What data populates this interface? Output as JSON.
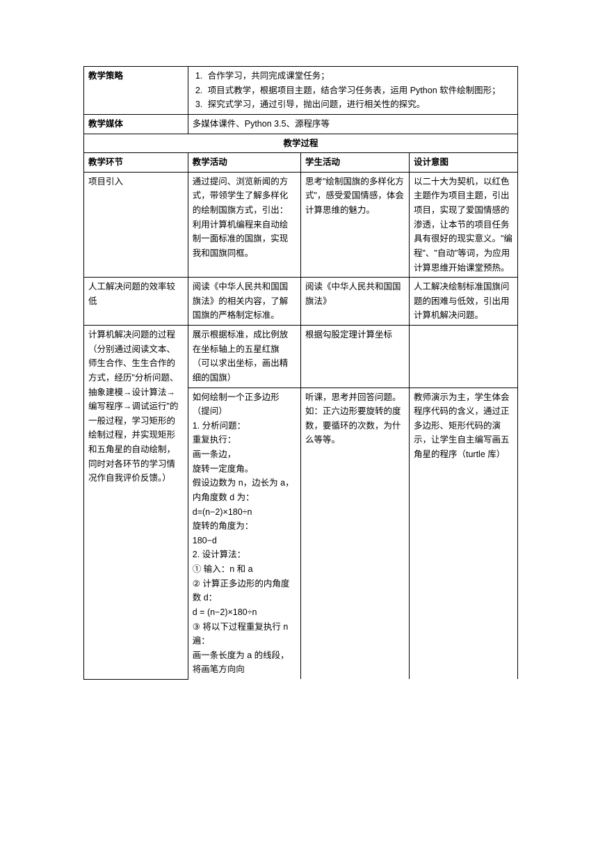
{
  "row1": {
    "label": "教学策略",
    "content": "<ol><li>合作学习，共同完成课堂任务；</li><li>项目式教学，根据项目主题，结合学习任务表，运用 Python 软件绘制图形；</li><li>探究式学习，通过引导，抛出问题，进行相关性的探究。</li></ol>"
  },
  "row2": {
    "label": "教学媒体",
    "content": "多媒体课件、Python 3.5、源程序等"
  },
  "section_header": "教学过程",
  "headers": {
    "col1": "教学环节",
    "col2": "教学活动",
    "col3": "学生活动",
    "col4": "设计意图"
  },
  "row_a": {
    "col1": "项目引入",
    "col2": "通过提问、浏览新闻的方式，带领学生了解多样化的绘制国旗方式，引出：利用计算机编程来自动绘制一面标准的国旗，实现我和国旗同框。",
    "col3": "思考\"绘制国旗的多样化方式\"，感受爱国情感，体会计算思维的魅力。",
    "col4": "以二十大为契机，以红色主题作为项目主题，引出项目，实现了爱国情感的渗透，让本节的项目任务具有很好的现实意义。\"编程\"、\"自动\"等词，为应用计算思维开始课堂预热。"
  },
  "row_b": {
    "col1": "人工解决问题的效率较低",
    "col2": "阅读《中华人民共和国国旗法》的相关内容，了解国旗的严格制定标准。",
    "col3": "阅读《中华人民共和国国旗法》",
    "col4": "人工解决绘制标准国旗问题的困难与低效，引出用计算机解决问题。"
  },
  "row_c": {
    "col1_merged": "计算机解决问题的过程（分别通过阅读文本、师生合作、生生合作的方式，经历\"分析问题、抽象建模→设计算法→编写程序→调试运行\"的一般过程，学习矩形的绘制过程，并实现矩形和五角星的自动绘制，同时对各环节的学习情况作自我评价反馈。）",
    "col2": "展示根据标准，成比例放在坐标轴上的五星红旗（可以求出坐标，画出精细的国旗）",
    "col3": "根据勾股定理计算坐标",
    "col4": ""
  },
  "row_d": {
    "col2": "如何绘制一个正多边形（提问）<br>1. 分析问题：<br>重复执行：<br>画一条边，<br>旋转一定度角。<br>假设边数为 n，边长为 a，内角度数 d 为：<br>d=(n−2)×180÷n<br>旋转的角度为：<br>180−d<br>2. 设计算法：<br>① 输入：n 和 a<br>② 计算正多边形的内角度数 d：<br>d = (n−2)×180÷n<br>③ 将以下过程重复执行 n 遍：<br>画一条长度为 a 的线段，将画笔方向向",
    "col3": "听课，思考并回答问题。如：正六边形要旋转的度数，要循环的次数，为什么等等。",
    "col4": "教师演示为主，学生体会程序代码的含义，通过正多边形、矩形代码的演示，让学生自主编写画五角星的程序（turtle 库）"
  }
}
